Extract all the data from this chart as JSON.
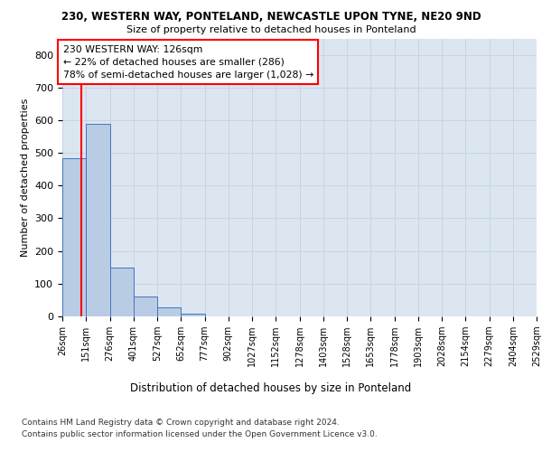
{
  "title_line1": "230, WESTERN WAY, PONTELAND, NEWCASTLE UPON TYNE, NE20 9ND",
  "title_line2": "Size of property relative to detached houses in Ponteland",
  "xlabel": "Distribution of detached houses by size in Ponteland",
  "ylabel": "Number of detached properties",
  "footnote1": "Contains HM Land Registry data © Crown copyright and database right 2024.",
  "footnote2": "Contains public sector information licensed under the Open Government Licence v3.0.",
  "bin_labels": [
    "26sqm",
    "151sqm",
    "276sqm",
    "401sqm",
    "527sqm",
    "652sqm",
    "777sqm",
    "902sqm",
    "1027sqm",
    "1152sqm",
    "1278sqm",
    "1403sqm",
    "1528sqm",
    "1653sqm",
    "1778sqm",
    "1903sqm",
    "2028sqm",
    "2154sqm",
    "2279sqm",
    "2404sqm",
    "2529sqm"
  ],
  "bar_values": [
    485,
    590,
    150,
    62,
    28,
    8,
    1,
    0,
    0,
    0,
    0,
    0,
    0,
    0,
    0,
    0,
    0,
    0,
    0,
    0
  ],
  "bar_color": "#b8cce4",
  "bar_edge_color": "#4472c4",
  "property_size": 126,
  "annotation_text1": "230 WESTERN WAY: 126sqm",
  "annotation_text2": "← 22% of detached houses are smaller (286)",
  "annotation_text3": "78% of semi-detached houses are larger (1,028) →",
  "vline_color": "red",
  "ylim": [
    0,
    850
  ],
  "yticks": [
    0,
    100,
    200,
    300,
    400,
    500,
    600,
    700,
    800
  ],
  "grid_color": "#c8d4e3",
  "bg_color": "#dce6f1"
}
